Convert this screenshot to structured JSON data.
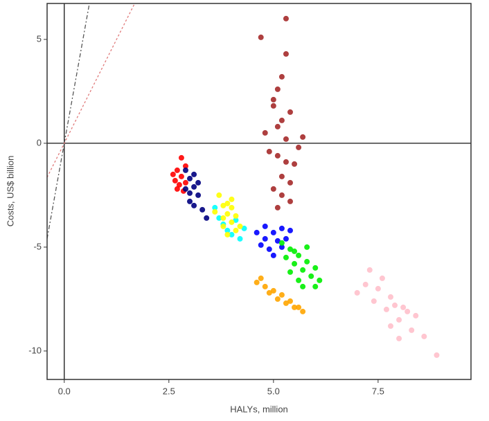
{
  "chart_data": {
    "type": "scatter",
    "xlabel": "HALYs, million",
    "ylabel": "Costs, US$ billion",
    "xlim": [
      -0.41,
      9.72
    ],
    "ylim": [
      -11.37,
      6.73
    ],
    "xticks": [
      {
        "value": 0,
        "label": "0.0"
      },
      {
        "value": 2.5,
        "label": "2.5"
      },
      {
        "value": 5,
        "label": "5.0"
      },
      {
        "value": 7.5,
        "label": "7.5"
      }
    ],
    "yticks": [
      5,
      0,
      -5,
      -10
    ],
    "zero_lines": true,
    "reference_lines": [
      {
        "slope": 11.2,
        "color": "#555555",
        "dash": "6 3 2 3"
      },
      {
        "slope": 4,
        "color": "#e07a7a",
        "dash": "3 3"
      }
    ],
    "series": [
      {
        "color": "#a52a2a",
        "x": [
          5.2,
          5.0,
          5.4,
          5.1,
          5.3,
          4.9,
          5.5,
          5.2,
          5.0,
          5.4,
          5.1,
          5.3,
          4.8,
          5.6,
          5.2,
          5.1,
          5.3,
          5.0,
          5.4,
          5.2,
          4.7,
          5.7,
          5.3,
          5.1
        ],
        "y": [
          3.2,
          2.1,
          1.5,
          0.8,
          0.2,
          -0.4,
          -1.0,
          -1.6,
          -2.2,
          -2.8,
          2.6,
          -0.9,
          0.5,
          -0.2,
          1.1,
          -3.1,
          4.3,
          1.8,
          -1.9,
          -2.5,
          5.1,
          0.3,
          6.0,
          -0.6
        ]
      },
      {
        "color": "#ff0000",
        "x": [
          2.7,
          2.8,
          2.6,
          2.9,
          2.75,
          2.65,
          2.85,
          2.8,
          2.7,
          2.9
        ],
        "y": [
          -1.3,
          -1.6,
          -1.5,
          -1.1,
          -2.0,
          -1.8,
          -2.3,
          -0.7,
          -2.2,
          -1.9
        ]
      },
      {
        "color": "#000080",
        "x": [
          2.9,
          3.0,
          3.1,
          3.2,
          3.0,
          3.1,
          2.9,
          3.2,
          3.3,
          3.0,
          3.1,
          3.4
        ],
        "y": [
          -1.3,
          -1.7,
          -2.1,
          -2.5,
          -2.8,
          -3.0,
          -2.2,
          -1.9,
          -3.2,
          -2.4,
          -1.5,
          -3.6
        ]
      },
      {
        "color": "#00ffff",
        "x": [
          3.6,
          3.8,
          4.0,
          4.2,
          3.9,
          4.1,
          3.7,
          4.3
        ],
        "y": [
          -3.1,
          -3.9,
          -4.4,
          -4.6,
          -4.2,
          -3.7,
          -3.6,
          -4.1
        ]
      },
      {
        "color": "#ffff00",
        "x": [
          3.7,
          3.8,
          3.9,
          4.0,
          4.1,
          3.8,
          3.9,
          4.0,
          3.6,
          4.2,
          3.9,
          3.8,
          4.0,
          4.1
        ],
        "y": [
          -2.5,
          -3.0,
          -3.4,
          -3.8,
          -4.2,
          -3.6,
          -2.9,
          -3.1,
          -3.3,
          -4.0,
          -4.4,
          -4.0,
          -2.7,
          -3.5
        ]
      },
      {
        "color": "#0000ff",
        "x": [
          4.6,
          4.8,
          5.0,
          5.2,
          5.4,
          4.7,
          4.9,
          5.1,
          5.3,
          5.0,
          4.8,
          5.2
        ],
        "y": [
          -4.3,
          -4.0,
          -4.3,
          -4.1,
          -4.2,
          -4.9,
          -5.1,
          -4.7,
          -4.6,
          -5.4,
          -4.6,
          -5.0
        ]
      },
      {
        "color": "#00ee00",
        "x": [
          5.2,
          5.4,
          5.6,
          5.8,
          6.0,
          5.3,
          5.5,
          5.7,
          5.9,
          6.1,
          5.5,
          5.6,
          5.8,
          5.4,
          5.7,
          6.0
        ],
        "y": [
          -4.8,
          -5.1,
          -5.4,
          -5.7,
          -6.0,
          -5.5,
          -5.8,
          -6.1,
          -6.4,
          -6.6,
          -5.2,
          -6.6,
          -5.0,
          -6.2,
          -6.9,
          -6.9
        ]
      },
      {
        "color": "#ffa500",
        "x": [
          4.6,
          4.8,
          5.0,
          5.2,
          5.4,
          5.6,
          4.9,
          5.1,
          5.3,
          5.5,
          4.7,
          5.7
        ],
        "y": [
          -6.7,
          -6.9,
          -7.1,
          -7.3,
          -7.6,
          -7.9,
          -7.2,
          -7.5,
          -7.7,
          -7.9,
          -6.5,
          -8.1
        ]
      },
      {
        "color": "#ffc0cb",
        "x": [
          7.2,
          7.5,
          7.8,
          8.1,
          8.4,
          7.4,
          7.7,
          8.0,
          8.3,
          7.6,
          7.9,
          8.2,
          7.0,
          8.6,
          7.3,
          8.0,
          7.8,
          8.9
        ],
        "y": [
          -6.8,
          -7.0,
          -7.4,
          -7.9,
          -8.3,
          -7.6,
          -8.0,
          -8.5,
          -9.0,
          -6.5,
          -7.8,
          -8.1,
          -7.2,
          -9.3,
          -6.1,
          -9.4,
          -8.8,
          -10.2
        ]
      }
    ]
  }
}
